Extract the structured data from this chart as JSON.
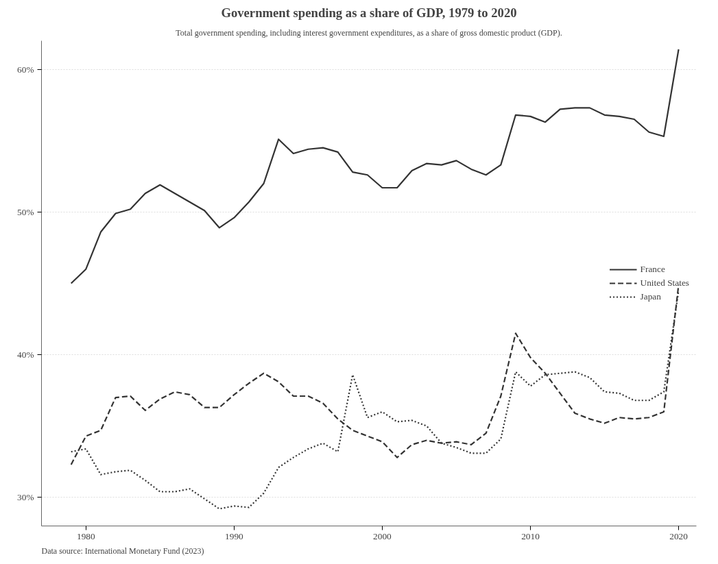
{
  "chart_data": {
    "type": "line",
    "title": "Government spending as a share of GDP, 1979 to 2020",
    "subtitle": "Total government spending, including interest government expenditures, as a share of gross domestic product (GDP).",
    "annotations": [
      "Data source: International Monetary Fund (2023)"
    ],
    "x": [
      1979,
      1980,
      1981,
      1982,
      1983,
      1984,
      1985,
      1986,
      1987,
      1988,
      1989,
      1990,
      1991,
      1992,
      1993,
      1994,
      1995,
      1996,
      1997,
      1998,
      1999,
      2000,
      2001,
      2002,
      2003,
      2004,
      2005,
      2006,
      2007,
      2008,
      2009,
      2010,
      2011,
      2012,
      2013,
      2014,
      2015,
      2016,
      2017,
      2018,
      2019,
      2020
    ],
    "series": [
      {
        "name": "France",
        "color": "#333333",
        "line_style": "solid",
        "values": [
          45.0,
          46.0,
          48.6,
          49.9,
          50.2,
          51.3,
          51.9,
          51.3,
          50.7,
          50.1,
          48.9,
          49.6,
          50.7,
          52.0,
          55.1,
          54.1,
          54.4,
          54.5,
          54.2,
          52.8,
          52.6,
          51.7,
          51.7,
          52.9,
          53.4,
          53.3,
          53.6,
          53.0,
          52.6,
          53.3,
          56.8,
          56.7,
          56.3,
          57.2,
          57.3,
          57.3,
          56.8,
          56.7,
          56.5,
          55.6,
          55.3,
          61.4
        ]
      },
      {
        "name": "United States",
        "color": "#333333",
        "line_style": "dashed",
        "values": [
          32.3,
          34.3,
          34.7,
          37.0,
          37.1,
          36.1,
          36.9,
          37.4,
          37.2,
          36.3,
          36.3,
          37.2,
          38.0,
          38.7,
          38.1,
          37.1,
          37.1,
          36.6,
          35.5,
          34.7,
          34.3,
          33.9,
          32.8,
          33.7,
          34.0,
          33.8,
          33.9,
          33.7,
          34.5,
          37.1,
          41.5,
          39.8,
          38.7,
          37.3,
          35.9,
          35.5,
          35.2,
          35.6,
          35.5,
          35.6,
          36.0,
          44.9
        ]
      },
      {
        "name": "Japan",
        "color": "#333333",
        "line_style": "dotted",
        "values": [
          33.2,
          33.4,
          31.6,
          31.8,
          31.9,
          31.2,
          30.4,
          30.4,
          30.6,
          29.9,
          29.2,
          29.4,
          29.3,
          30.3,
          32.1,
          32.8,
          33.4,
          33.8,
          33.2,
          38.6,
          35.6,
          36.0,
          35.3,
          35.4,
          35.0,
          33.8,
          33.5,
          33.1,
          33.1,
          34.1,
          38.8,
          37.8,
          38.6,
          38.7,
          38.8,
          38.4,
          37.4,
          37.3,
          36.8,
          36.8,
          37.4,
          44.5
        ]
      }
    ],
    "xlim": [
      1977,
      2021.2
    ],
    "xticks": [
      1980,
      1990,
      2000,
      2010,
      2020
    ],
    "ylim": [
      28,
      62
    ],
    "yticks": [
      {
        "value": 30,
        "label": "30%"
      },
      {
        "value": 40,
        "label": "40%"
      },
      {
        "value": 50,
        "label": "50%"
      },
      {
        "value": 60,
        "label": "60%"
      }
    ],
    "grid": "y",
    "legend": "right",
    "marker": "none"
  }
}
